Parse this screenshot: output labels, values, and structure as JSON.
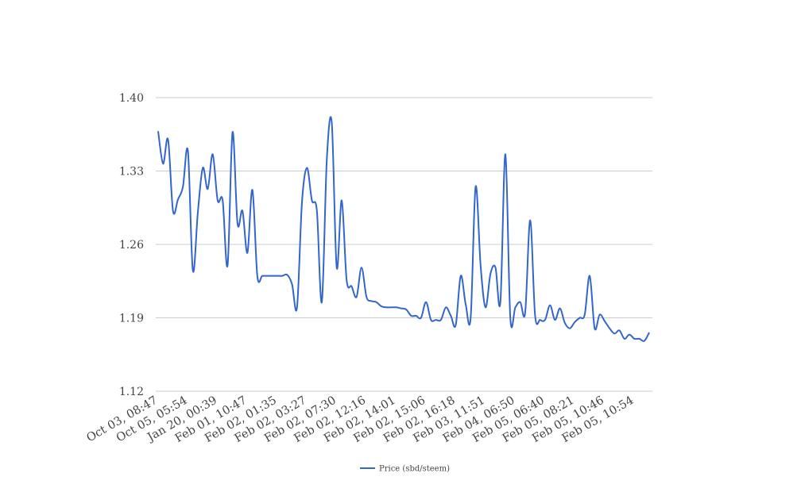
{
  "chart_data": {
    "type": "line",
    "title": "",
    "xlabel": "",
    "ylabel": "",
    "ylim": [
      1.12,
      1.4
    ],
    "yticks": [
      1.12,
      1.19,
      1.26,
      1.33,
      1.4
    ],
    "ytick_labels": [
      "1.12",
      "1.19",
      "1.26",
      "1.33",
      "1.40"
    ],
    "grid": true,
    "legend_position": "bottom",
    "x_tick_labels": [
      "Oct 03, 08:47",
      "Oct 05, 05:54",
      "Jan 20, 00:39",
      "Feb 01, 10:47",
      "Feb 02, 01:35",
      "Feb 02, 03:27",
      "Feb 02, 07:30",
      "Feb 02, 12:16",
      "Feb 02, 14:01",
      "Feb 02, 15:06",
      "Feb 02, 16:18",
      "Feb 03, 11:51",
      "Feb 04, 06:50",
      "Feb 05, 06:40",
      "Feb 05, 08:21",
      "Feb 05, 10:46",
      "Feb 05, 10:54"
    ],
    "x_tick_every": 6,
    "series": [
      {
        "name": "Price (sbd/steem)",
        "color": "#3366cc",
        "values": [
          1.368,
          1.337,
          1.36,
          1.292,
          1.303,
          1.315,
          1.349,
          1.235,
          1.29,
          1.333,
          1.313,
          1.346,
          1.302,
          1.302,
          1.24,
          1.367,
          1.28,
          1.292,
          1.252,
          1.312,
          1.23,
          1.23,
          1.23,
          1.23,
          1.23,
          1.23,
          1.231,
          1.222,
          1.2,
          1.3,
          1.333,
          1.302,
          1.292,
          1.205,
          1.34,
          1.376,
          1.238,
          1.302,
          1.226,
          1.22,
          1.21,
          1.238,
          1.21,
          1.206,
          1.205,
          1.201,
          1.2,
          1.2,
          1.2,
          1.199,
          1.198,
          1.192,
          1.192,
          1.19,
          1.205,
          1.188,
          1.188,
          1.188,
          1.2,
          1.192,
          1.183,
          1.23,
          1.203,
          1.19,
          1.315,
          1.24,
          1.2,
          1.232,
          1.238,
          1.205,
          1.346,
          1.19,
          1.2,
          1.205,
          1.195,
          1.283,
          1.192,
          1.188,
          1.188,
          1.202,
          1.188,
          1.199,
          1.185,
          1.18,
          1.186,
          1.19,
          1.193,
          1.23,
          1.18,
          1.193,
          1.187,
          1.18,
          1.175,
          1.178,
          1.17,
          1.174,
          1.17,
          1.17,
          1.168,
          1.176
        ]
      }
    ]
  }
}
